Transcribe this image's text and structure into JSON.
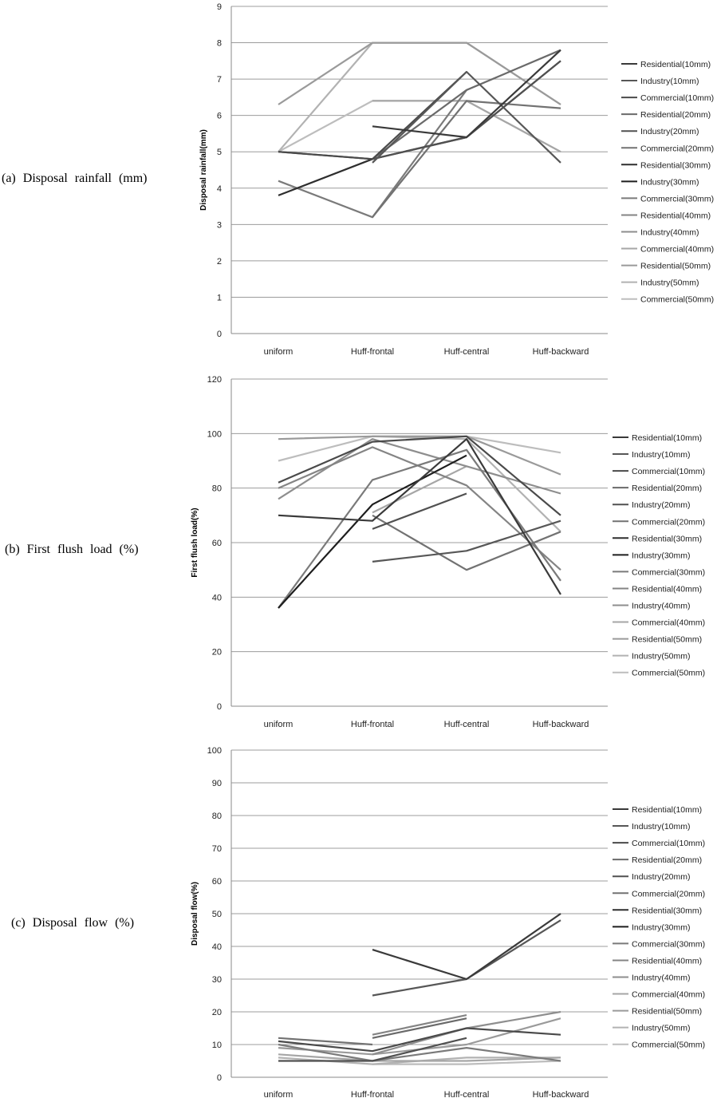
{
  "chart_data": [
    {
      "type": "line",
      "panel_label": "(a) Disposal rainfall (mm)",
      "ylabel": "Disposal rainfall(mm)",
      "categories": [
        "uniform",
        "Huff-frontal",
        "Huff-central",
        "Huff-backward"
      ],
      "ylim": [
        0,
        9
      ],
      "yticks": [
        "0",
        "1",
        "2",
        "3",
        "4",
        "5",
        "6",
        "7",
        "8",
        "9"
      ],
      "grid": true,
      "legend_position": "right",
      "series": [
        {
          "name": "Residential(10mm)",
          "color": "#3a3a3a",
          "values": [
            null,
            5.7,
            5.4,
            7.8
          ]
        },
        {
          "name": "Industry(10mm)",
          "color": "#575757",
          "values": [
            null,
            4.7,
            7.2,
            4.7
          ]
        },
        {
          "name": "Commercial(10mm)",
          "color": "#4a4a4a",
          "values": [
            5.0,
            4.8,
            7.2,
            null
          ]
        },
        {
          "name": "Residential(20mm)",
          "color": "#6a6a6a",
          "values": [
            null,
            4.8,
            6.7,
            7.8
          ]
        },
        {
          "name": "Industry(20mm)",
          "color": "#505050",
          "values": [
            5.0,
            4.8,
            5.4,
            7.5
          ]
        },
        {
          "name": "Commercial(20mm)",
          "color": "#727272",
          "values": [
            null,
            3.2,
            6.4,
            6.2
          ]
        },
        {
          "name": "Residential(30mm)",
          "color": "#2e2e2e",
          "values": [
            3.8,
            4.8,
            5.4,
            7.5
          ]
        },
        {
          "name": "Industry(30mm)",
          "color": "#1e1e1e",
          "values": [
            null,
            null,
            null,
            null
          ]
        },
        {
          "name": "Commercial(30mm)",
          "color": "#7a7a7a",
          "values": [
            4.2,
            3.2,
            6.7,
            null
          ]
        },
        {
          "name": "Residential(40mm)",
          "color": "#848484",
          "values": [
            null,
            null,
            null,
            null
          ]
        },
        {
          "name": "Industry(40mm)",
          "color": "#8e8e8e",
          "values": [
            null,
            null,
            null,
            null
          ]
        },
        {
          "name": "Commercial(40mm)",
          "color": "#a6a6a6",
          "values": [
            null,
            6.4,
            6.4,
            5.0
          ]
        },
        {
          "name": "Residential(50mm)",
          "color": "#9a9a9a",
          "values": [
            6.3,
            8.0,
            8.0,
            6.3
          ]
        },
        {
          "name": "Industry(50mm)",
          "color": "#b2b2b2",
          "values": [
            5.0,
            8.0,
            8.0,
            6.3
          ]
        },
        {
          "name": "Commercial(50mm)",
          "color": "#bdbdbd",
          "values": [
            5.0,
            6.4,
            6.4,
            5.0
          ]
        }
      ]
    },
    {
      "type": "line",
      "panel_label": "(b) First flush load (%)",
      "ylabel": "First flush load(%)",
      "categories": [
        "uniform",
        "Huff-frontal",
        "Huff-central",
        "Huff-backward"
      ],
      "ylim": [
        0,
        120
      ],
      "yticks": [
        "0",
        "20",
        "40",
        "60",
        "80",
        "100",
        "120"
      ],
      "grid": true,
      "legend_position": "right",
      "series": [
        {
          "name": "Residential(10mm)",
          "color": "#3a3a3a",
          "values": [
            70,
            68,
            98,
            41
          ]
        },
        {
          "name": "Industry(10mm)",
          "color": "#575757",
          "values": [
            null,
            53,
            57,
            68
          ]
        },
        {
          "name": "Commercial(10mm)",
          "color": "#4a4a4a",
          "values": [
            82,
            97,
            99,
            70
          ]
        },
        {
          "name": "Residential(20mm)",
          "color": "#6a6a6a",
          "values": [
            null,
            null,
            null,
            null
          ]
        },
        {
          "name": "Industry(20mm)",
          "color": "#505050",
          "values": [
            null,
            65,
            78,
            null
          ]
        },
        {
          "name": "Commercial(20mm)",
          "color": "#727272",
          "values": [
            null,
            70,
            50,
            64
          ]
        },
        {
          "name": "Residential(30mm)",
          "color": "#2e2e2e",
          "values": [
            null,
            null,
            null,
            null
          ]
        },
        {
          "name": "Industry(30mm)",
          "color": "#1e1e1e",
          "values": [
            36,
            74,
            92,
            null
          ]
        },
        {
          "name": "Commercial(30mm)",
          "color": "#7a7a7a",
          "values": [
            36,
            83,
            94,
            46
          ]
        },
        {
          "name": "Residential(40mm)",
          "color": "#848484",
          "values": [
            80,
            95,
            81,
            50
          ]
        },
        {
          "name": "Industry(40mm)",
          "color": "#8e8e8e",
          "values": [
            76,
            98,
            88,
            78
          ]
        },
        {
          "name": "Commercial(40mm)",
          "color": "#a6a6a6",
          "values": [
            null,
            71,
            88,
            null
          ]
        },
        {
          "name": "Residential(50mm)",
          "color": "#9a9a9a",
          "values": [
            98,
            99,
            99,
            85
          ]
        },
        {
          "name": "Industry(50mm)",
          "color": "#b2b2b2",
          "values": [
            null,
            99,
            98,
            64
          ]
        },
        {
          "name": "Commercial(50mm)",
          "color": "#bdbdbd",
          "values": [
            90,
            99,
            99,
            93
          ]
        }
      ]
    },
    {
      "type": "line",
      "panel_label": "(c) Disposal flow (%)",
      "ylabel": "Disposal flow(%)",
      "categories": [
        "uniform",
        "Huff-frontal",
        "Huff-central",
        "Huff-backward"
      ],
      "ylim": [
        0,
        100
      ],
      "yticks": [
        "0",
        "10",
        "20",
        "30",
        "40",
        "50",
        "60",
        "70",
        "80",
        "90",
        "100"
      ],
      "grid": true,
      "legend_position": "right",
      "series": [
        {
          "name": "Residential(10mm)",
          "color": "#3a3a3a",
          "values": [
            null,
            39,
            30,
            50
          ]
        },
        {
          "name": "Industry(10mm)",
          "color": "#575757",
          "values": [
            null,
            25,
            30,
            48
          ]
        },
        {
          "name": "Commercial(10mm)",
          "color": "#4a4a4a",
          "values": [
            11,
            8,
            15,
            13
          ]
        },
        {
          "name": "Residential(20mm)",
          "color": "#6a6a6a",
          "values": [
            null,
            12,
            18,
            null
          ]
        },
        {
          "name": "Industry(20mm)",
          "color": "#505050",
          "values": [
            5,
            5,
            12,
            null
          ]
        },
        {
          "name": "Commercial(20mm)",
          "color": "#727272",
          "values": [
            12,
            10,
            null,
            null
          ]
        },
        {
          "name": "Residential(30mm)",
          "color": "#2e2e2e",
          "values": [
            null,
            null,
            null,
            null
          ]
        },
        {
          "name": "Industry(30mm)",
          "color": "#1e1e1e",
          "values": [
            null,
            null,
            null,
            null
          ]
        },
        {
          "name": "Commercial(30mm)",
          "color": "#7a7a7a",
          "values": [
            10,
            5,
            9,
            5
          ]
        },
        {
          "name": "Residential(40mm)",
          "color": "#848484",
          "values": [
            null,
            13,
            19,
            null
          ]
        },
        {
          "name": "Industry(40mm)",
          "color": "#8e8e8e",
          "values": [
            null,
            7,
            15,
            20
          ]
        },
        {
          "name": "Commercial(40mm)",
          "color": "#a6a6a6",
          "values": [
            7,
            5,
            5,
            6
          ]
        },
        {
          "name": "Residential(50mm)",
          "color": "#9a9a9a",
          "values": [
            9,
            7,
            10,
            18
          ]
        },
        {
          "name": "Industry(50mm)",
          "color": "#b2b2b2",
          "values": [
            6,
            4,
            6,
            6
          ]
        },
        {
          "name": "Commercial(50mm)",
          "color": "#bdbdbd",
          "values": [
            null,
            4,
            4,
            5
          ]
        }
      ]
    }
  ]
}
